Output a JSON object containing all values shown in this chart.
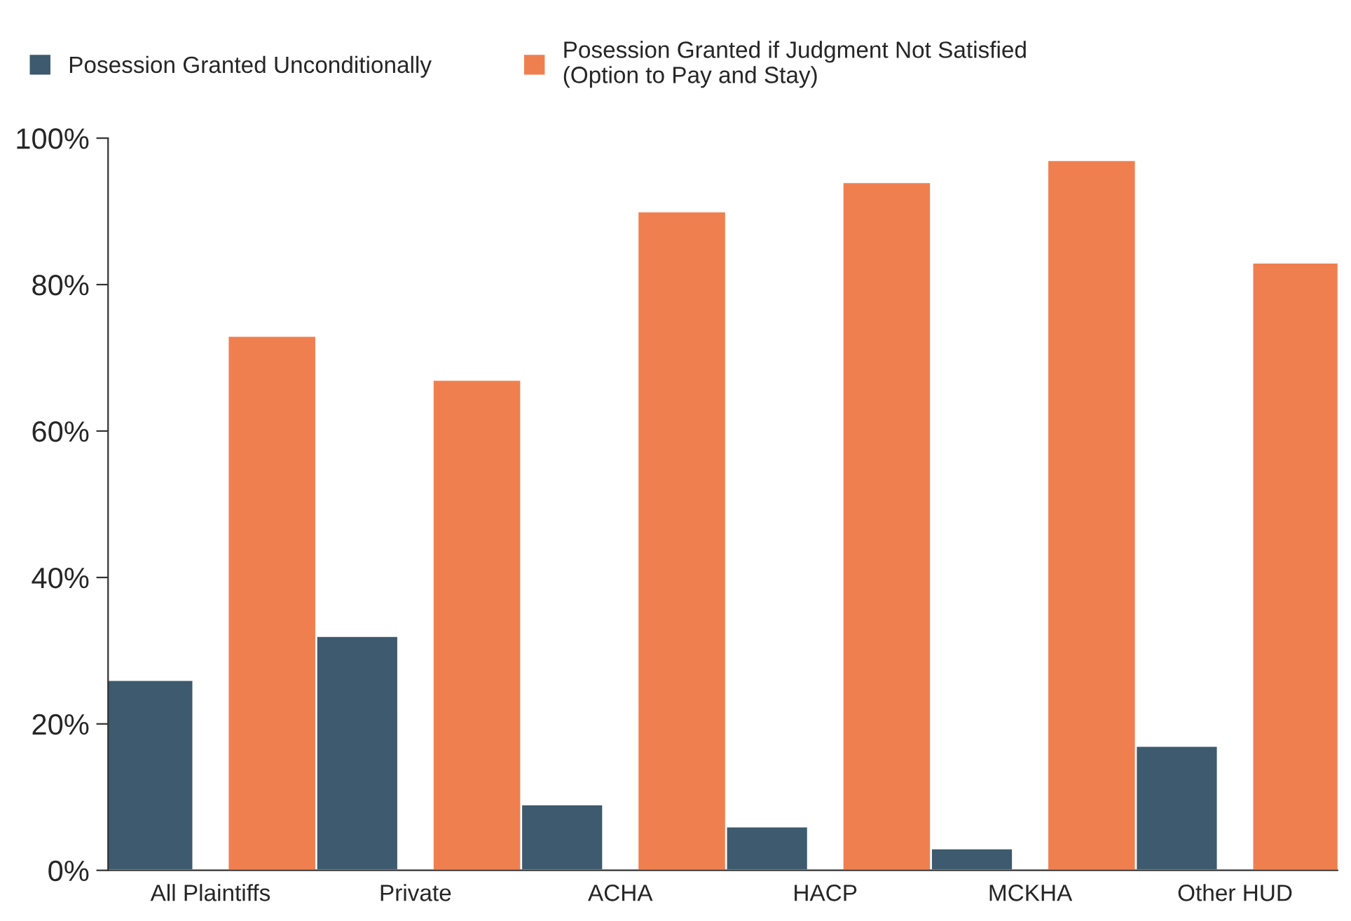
{
  "chart_data": {
    "type": "bar",
    "categories": [
      "All Plaintiffs",
      "Private",
      "ACHA",
      "HACP",
      "MCKHA",
      "Other HUD"
    ],
    "series": [
      {
        "name": "Posession Granted Unconditionally",
        "color": "#3d5a6e",
        "values": [
          26,
          32,
          9,
          6,
          3,
          17
        ]
      },
      {
        "name": "Posession Granted if Judgment Not Satisfied\n(Option to Pay and Stay)",
        "color": "#f07f4f",
        "values": [
          73,
          67,
          90,
          94,
          97,
          83
        ]
      }
    ],
    "ylim": [
      0,
      100
    ],
    "yticks": [
      {
        "value": 0,
        "label": "0%"
      },
      {
        "value": 20,
        "label": "20%"
      },
      {
        "value": 40,
        "label": "40%"
      },
      {
        "value": 60,
        "label": "60%"
      },
      {
        "value": 80,
        "label": "80%"
      },
      {
        "value": 100,
        "label": "100%"
      }
    ],
    "grid": false,
    "legend": "top left"
  }
}
